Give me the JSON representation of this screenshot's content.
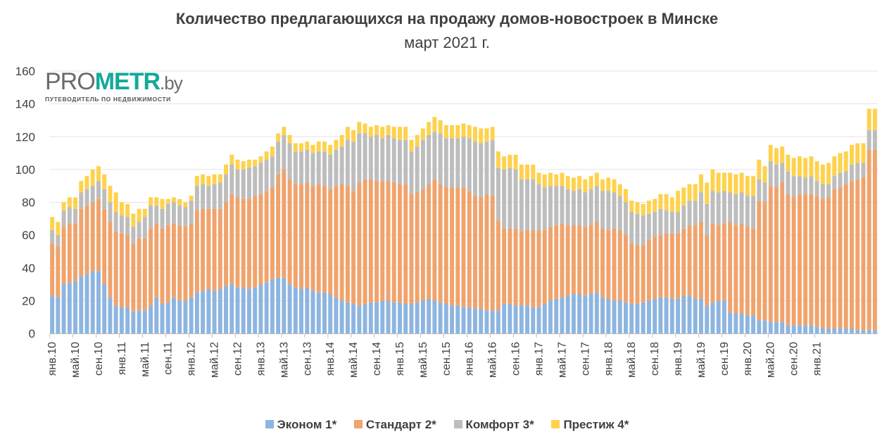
{
  "header": {
    "title": "Количество предлагающихся на продажу домов-новостроек в Минске",
    "subtitle": "март 2021 г."
  },
  "logo": {
    "part1": "PRO",
    "part2": "METR",
    "part3": ".by",
    "tagline": "ПУТЕВОДИТЕЛЬ ПО НЕДВИЖИМОСТИ"
  },
  "colors": {
    "econom": "#8db5e0",
    "standard": "#f0a36c",
    "comfort": "#bdbdbd",
    "prestige": "#ffd24d",
    "grid": "#e3e3e3",
    "axis": "#bfbfbf"
  },
  "chart_data": {
    "type": "bar",
    "stacked": true,
    "title": "Количество предлагающихся на продажу домов-новостроек в Минске",
    "subtitle": "март 2021 г.",
    "xlabel": "",
    "ylabel": "",
    "ylim": [
      0,
      160
    ],
    "yticks": [
      0,
      20,
      40,
      60,
      80,
      100,
      120,
      140,
      160
    ],
    "grid": true,
    "legend_position": "bottom",
    "x_tick_labels": [
      "янв.10",
      "май.10",
      "сен.10",
      "янв.11",
      "май.11",
      "сен.11",
      "янв.12",
      "май.12",
      "сен.12",
      "янв.13",
      "май.13",
      "сен.13",
      "янв.14",
      "май.14",
      "сен.14",
      "янв.15",
      "май.15",
      "сен.15",
      "янв.16",
      "май.16",
      "сен.16",
      "янв.17",
      "май.17",
      "сен.17",
      "янв.18",
      "май.18",
      "сен.18",
      "янв.19",
      "май.19",
      "сен.19",
      "янв.20",
      "май.20",
      "сен.20",
      "янв.21"
    ],
    "x_tick_every": 4,
    "x_start": "янв.10",
    "x_end": "мар.21",
    "series": [
      {
        "name": "Эконом 1*",
        "key": "econom",
        "values": [
          23,
          22,
          30,
          31,
          32,
          35,
          36,
          38,
          38,
          30,
          22,
          17,
          16,
          16,
          13,
          14,
          14,
          17,
          22,
          18,
          19,
          22,
          20,
          20,
          22,
          25,
          26,
          27,
          26,
          27,
          29,
          30,
          28,
          28,
          27,
          28,
          30,
          31,
          33,
          34,
          34,
          30,
          28,
          27,
          28,
          26,
          25,
          25,
          24,
          22,
          20,
          19,
          18,
          17,
          18,
          19,
          19,
          20,
          20,
          19,
          19,
          18,
          18,
          19,
          20,
          21,
          20,
          19,
          18,
          17,
          17,
          16,
          16,
          15,
          15,
          14,
          14,
          14,
          18,
          18,
          17,
          17,
          17,
          16,
          16,
          18,
          20,
          21,
          22,
          23,
          24,
          24,
          23,
          24,
          25,
          22,
          21,
          20,
          20,
          19,
          18,
          18,
          19,
          20,
          21,
          22,
          22,
          21,
          21,
          23,
          23,
          21,
          21,
          17,
          19,
          20,
          20,
          13,
          12,
          12,
          11,
          11,
          8,
          8,
          7,
          7,
          7,
          5,
          5,
          5,
          5,
          5,
          4,
          3,
          3,
          3,
          3,
          3,
          3,
          2,
          2,
          2,
          2
        ]
      },
      {
        "name": "Стандарт 2*",
        "key": "standard",
        "values": [
          32,
          31,
          35,
          36,
          35,
          41,
          42,
          42,
          44,
          46,
          46,
          45,
          45,
          44,
          42,
          44,
          44,
          47,
          45,
          46,
          47,
          45,
          46,
          45,
          45,
          50,
          50,
          49,
          50,
          49,
          51,
          55,
          55,
          54,
          55,
          56,
          55,
          56,
          56,
          63,
          66,
          64,
          63,
          64,
          64,
          64,
          66,
          65,
          64,
          68,
          71,
          71,
          69,
          75,
          76,
          75,
          74,
          73,
          73,
          73,
          72,
          73,
          67,
          67,
          68,
          70,
          74,
          72,
          71,
          72,
          72,
          73,
          71,
          69,
          68,
          71,
          70,
          55,
          46,
          46,
          47,
          45,
          46,
          47,
          47,
          45,
          45,
          45,
          45,
          43,
          42,
          42,
          42,
          42,
          43,
          42,
          42,
          44,
          43,
          41,
          37,
          36,
          35,
          37,
          38,
          38,
          39,
          40,
          40,
          41,
          43,
          45,
          47,
          43,
          48,
          46,
          47,
          55,
          54,
          55,
          54,
          53,
          73,
          72,
          83,
          82,
          85,
          80,
          78,
          80,
          80,
          80,
          80,
          79,
          80,
          85,
          86,
          88,
          90,
          92,
          93,
          110,
          110
        ]
      },
      {
        "name": "Комфорт 3*",
        "key": "comfort",
        "values": [
          8,
          7,
          10,
          10,
          9,
          10,
          10,
          10,
          11,
          12,
          12,
          12,
          11,
          11,
          10,
          10,
          13,
          14,
          11,
          12,
          13,
          13,
          12,
          12,
          14,
          15,
          15,
          14,
          15,
          16,
          17,
          18,
          17,
          18,
          19,
          18,
          19,
          19,
          19,
          20,
          21,
          22,
          20,
          20,
          20,
          20,
          20,
          21,
          21,
          22,
          23,
          28,
          30,
          30,
          28,
          26,
          28,
          26,
          28,
          27,
          27,
          27,
          26,
          28,
          30,
          30,
          29,
          31,
          30,
          30,
          30,
          31,
          32,
          33,
          33,
          32,
          34,
          32,
          36,
          37,
          36,
          32,
          31,
          31,
          28,
          26,
          25,
          24,
          23,
          22,
          21,
          22,
          21,
          22,
          22,
          23,
          24,
          22,
          21,
          20,
          19,
          19,
          18,
          16,
          15,
          16,
          14,
          13,
          13,
          14,
          15,
          15,
          18,
          19,
          20,
          20,
          20,
          18,
          19,
          19,
          19,
          20,
          13,
          12,
          15,
          14,
          12,
          14,
          13,
          11,
          10,
          11,
          9,
          9,
          8,
          8,
          9,
          8,
          10,
          10,
          9,
          12,
          12
        ]
      },
      {
        "name": "Престиж 4*",
        "key": "prestige",
        "values": [
          8,
          8,
          5,
          6,
          7,
          7,
          8,
          10,
          9,
          9,
          10,
          12,
          8,
          8,
          8,
          8,
          5,
          5,
          5,
          6,
          3,
          3,
          4,
          3,
          3,
          6,
          6,
          6,
          6,
          5,
          6,
          6,
          6,
          5,
          5,
          4,
          4,
          5,
          6,
          5,
          5,
          5,
          5,
          5,
          5,
          5,
          6,
          6,
          6,
          6,
          7,
          8,
          7,
          7,
          6,
          6,
          6,
          7,
          6,
          7,
          8,
          8,
          7,
          7,
          7,
          8,
          9,
          8,
          8,
          8,
          8,
          8,
          8,
          9,
          9,
          8,
          8,
          10,
          8,
          8,
          9,
          9,
          9,
          9,
          7,
          8,
          8,
          7,
          8,
          8,
          8,
          8,
          8,
          8,
          8,
          7,
          8,
          8,
          7,
          8,
          7,
          7,
          7,
          8,
          8,
          9,
          10,
          9,
          13,
          11,
          10,
          10,
          11,
          13,
          13,
          12,
          11,
          12,
          12,
          12,
          12,
          12,
          12,
          10,
          10,
          10,
          10,
          10,
          11,
          12,
          12,
          12,
          12,
          12,
          13,
          12,
          12,
          12,
          12,
          12,
          12,
          13,
          13
        ]
      }
    ]
  },
  "legend": {
    "items": [
      {
        "label": "Эконом 1*",
        "key": "econom"
      },
      {
        "label": "Стандарт 2*",
        "key": "standard"
      },
      {
        "label": "Комфорт 3*",
        "key": "comfort"
      },
      {
        "label": "Престиж 4*",
        "key": "prestige"
      }
    ]
  }
}
